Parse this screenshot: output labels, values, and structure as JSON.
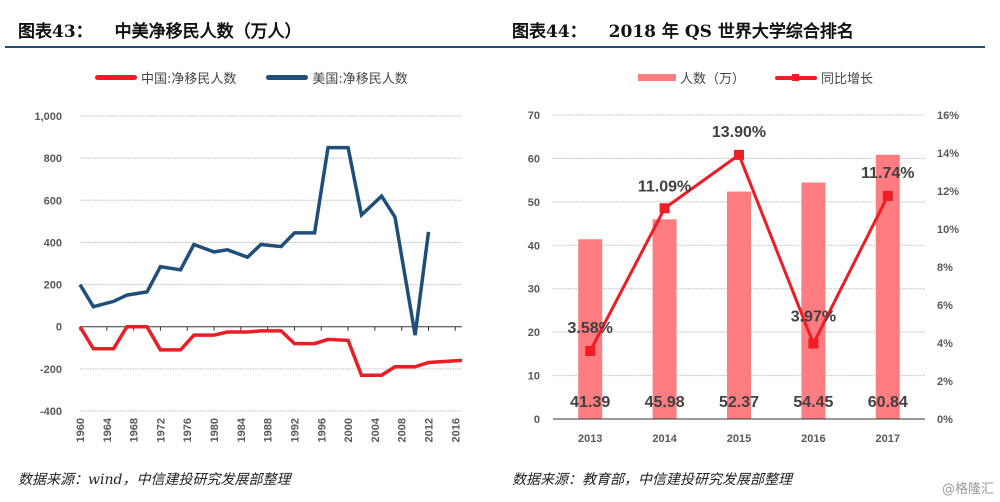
{
  "left": {
    "title_num": "图表43：",
    "title": "中美净移民人数（万人）",
    "source": "数据来源：wind，中信建投研究发展部整理"
  },
  "right": {
    "title_num": "图表44：",
    "title": "2018 年 QS 世界大学综合排名",
    "source": "数据来源：教育部，中信建投研究发展部整理"
  },
  "watermark": "@格隆汇",
  "chart_data": [
    {
      "type": "line",
      "title": "中美净移民人数（万人）",
      "xlabel": "",
      "ylabel": "",
      "ylim": [
        -400,
        1000
      ],
      "xlim": [
        1960,
        2017
      ],
      "yticks": [
        -400,
        -200,
        0,
        200,
        400,
        600,
        800,
        1000
      ],
      "ytick_labels": [
        "-400",
        "-200",
        "0",
        "200",
        "400",
        "600",
        "800",
        "1,000"
      ],
      "xticks": [
        1960,
        1964,
        1968,
        1972,
        1976,
        1980,
        1984,
        1988,
        1992,
        1996,
        2000,
        2004,
        2008,
        2012,
        2016
      ],
      "grid": true,
      "legend": "top-center",
      "series": [
        {
          "name": "中国:净移民人数",
          "color": "#ee1c25",
          "x": [
            1960,
            1962,
            1965,
            1967,
            1970,
            1972,
            1975,
            1977,
            1980,
            1982,
            1985,
            1987,
            1990,
            1992,
            1995,
            1997,
            2000,
            2002,
            2005,
            2007,
            2010,
            2012,
            2017
          ],
          "values": [
            0,
            -105,
            -105,
            0,
            0,
            -110,
            -110,
            -40,
            -40,
            -25,
            -25,
            -20,
            -20,
            -80,
            -80,
            -60,
            -65,
            -230,
            -230,
            -190,
            -190,
            -170,
            -160
          ]
        },
        {
          "name": "美国:净移民人数",
          "color": "#1f4e79",
          "x": [
            1960,
            1962,
            1965,
            1967,
            1970,
            1972,
            1975,
            1977,
            1980,
            1982,
            1985,
            1987,
            1990,
            1992,
            1995,
            1997,
            2000,
            2002,
            2005,
            2007,
            2010,
            2012
          ],
          "values": [
            200,
            95,
            120,
            150,
            165,
            285,
            270,
            390,
            355,
            365,
            330,
            390,
            380,
            445,
            445,
            850,
            850,
            530,
            620,
            520,
            -40,
            450
          ]
        }
      ]
    },
    {
      "type": "bar",
      "title": "2018 年 QS 世界大学综合排名",
      "categories": [
        "2013",
        "2014",
        "2015",
        "2016",
        "2017"
      ],
      "legend": "top-center",
      "grid": true,
      "series": [
        {
          "name": "人数（万）",
          "type": "bar",
          "axis": "left",
          "color": "#ff7c80",
          "values": [
            41.39,
            45.98,
            52.37,
            54.45,
            60.84
          ],
          "labels": [
            "41.39",
            "45.98",
            "52.37",
            "54.45",
            "60.84"
          ]
        },
        {
          "name": "同比增长",
          "type": "line",
          "axis": "right",
          "color": "#ee1c25",
          "values": [
            3.58,
            11.09,
            13.9,
            3.97,
            11.74
          ],
          "labels": [
            "3.58%",
            "11.09%",
            "13.90%",
            "3.97%",
            "11.74%"
          ]
        }
      ],
      "ylim": [
        0,
        70
      ],
      "yticks": [
        0,
        10,
        20,
        30,
        40,
        50,
        60,
        70
      ],
      "y2lim": [
        0,
        16
      ],
      "y2ticks": [
        0,
        2,
        4,
        6,
        8,
        10,
        12,
        14,
        16
      ],
      "y2tick_labels": [
        "0%",
        "2%",
        "4%",
        "6%",
        "8%",
        "10%",
        "12%",
        "14%",
        "16%"
      ]
    }
  ]
}
